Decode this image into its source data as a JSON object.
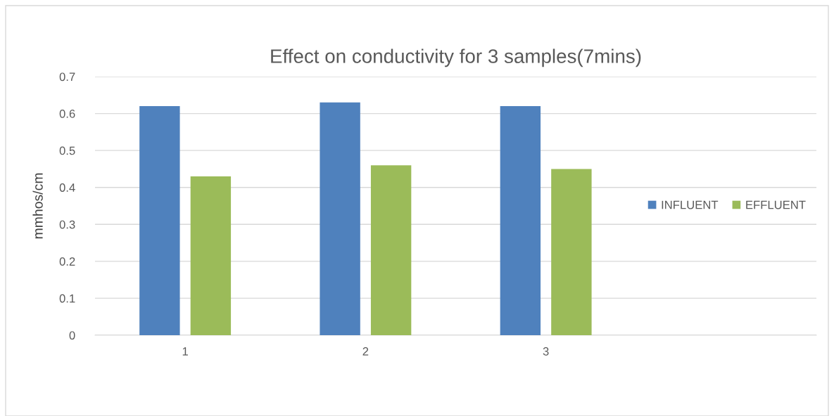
{
  "chart_data": {
    "type": "bar",
    "title": "Effect on conductivity for 3 samples(7mins)",
    "ylabel": "mmhos/cm",
    "categories": [
      "1",
      "2",
      "3",
      null
    ],
    "series": [
      {
        "name": "INFLUENT",
        "color": "#4f81bd",
        "values": [
          0.62,
          0.63,
          0.62,
          null
        ]
      },
      {
        "name": "EFFLUENT",
        "color": "#9bbb59",
        "values": [
          0.43,
          0.46,
          0.45,
          null
        ]
      }
    ],
    "ylim": [
      0,
      0.7
    ],
    "yticks": [
      0,
      0.1,
      0.2,
      0.3,
      0.4,
      0.5,
      0.6,
      0.7
    ],
    "grid": "y",
    "legend": "right"
  }
}
